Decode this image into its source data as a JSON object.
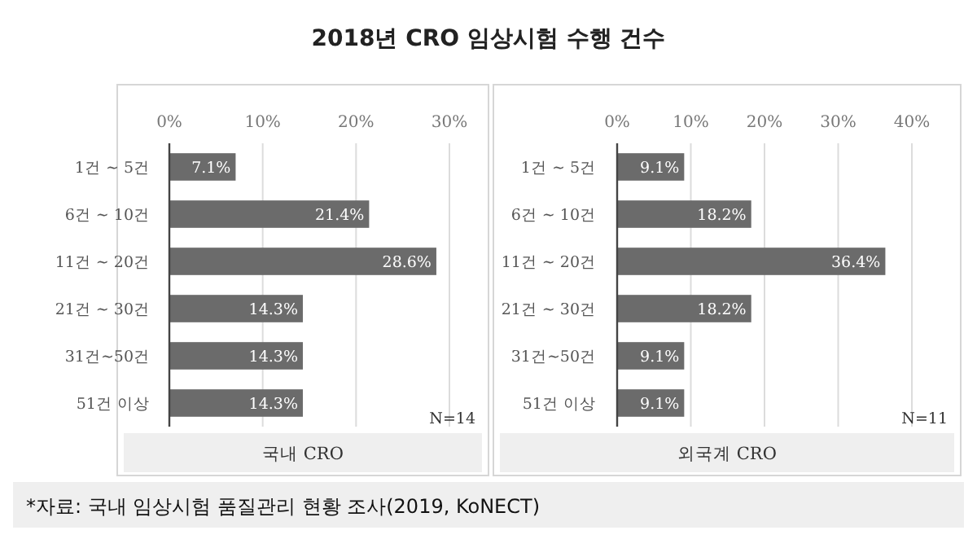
{
  "chart_data": [
    {
      "type": "bar",
      "orientation": "horizontal",
      "title": "2018년 CRO 임상시험 수행 건수",
      "xlabel": "국내 CRO",
      "categories": [
        "1건 ~ 5건",
        "6건 ~ 10건",
        "11건 ~ 20건",
        "21건 ~ 30건",
        "31건~50건",
        "51건 이상"
      ],
      "values": [
        7.1,
        21.4,
        28.6,
        14.3,
        14.3,
        14.3
      ],
      "value_labels": [
        "7.1%",
        "21.4%",
        "28.6%",
        "14.3%",
        "14.3%",
        "14.3%"
      ],
      "color": "#6b6b6b",
      "xlim": [
        0,
        30
      ],
      "xticks": [
        {
          "value": 0,
          "label": "0%"
        },
        {
          "value": 10,
          "label": "10%"
        },
        {
          "value": 20,
          "label": "20%"
        },
        {
          "value": 30,
          "label": "30%"
        }
      ],
      "grid": "x",
      "annotations": [
        "N=14",
        "*자료: 국내 임상시험 품질관리 현황 조사(2019, KoNECT)"
      ]
    },
    {
      "type": "bar",
      "orientation": "horizontal",
      "xlabel": "외국계 CRO",
      "categories": [
        "1건 ~ 5건",
        "6건 ~ 10건",
        "11건 ~ 20건",
        "21건 ~ 30건",
        "31건~50건",
        "51건 이상"
      ],
      "values": [
        9.1,
        18.2,
        36.4,
        18.2,
        9.1,
        9.1
      ],
      "value_labels": [
        "9.1%",
        "18.2%",
        "36.4%",
        "18.2%",
        "9.1%",
        "9.1%"
      ],
      "color": "#6b6b6b",
      "xlim": [
        0,
        40
      ],
      "xticks": [
        {
          "value": 0,
          "label": "0%"
        },
        {
          "value": 10,
          "label": "10%"
        },
        {
          "value": 20,
          "label": "20%"
        },
        {
          "value": 30,
          "label": "30%"
        },
        {
          "value": 40,
          "label": "40%"
        }
      ],
      "grid": "x",
      "annotations": [
        "N=11"
      ]
    }
  ]
}
